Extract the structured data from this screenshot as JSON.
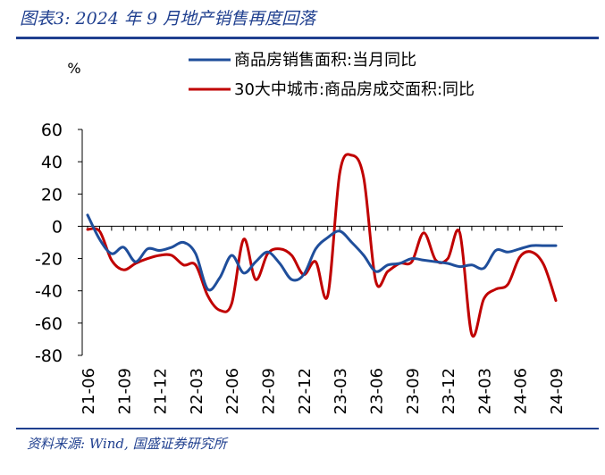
{
  "header": {
    "title": "图表3:  2024 年 9 月地产销售再度回落"
  },
  "footer": {
    "source": "资料来源:  Wind,  国盛证券研究所"
  },
  "colors": {
    "brand": "#1f3f8f",
    "series_blue": "#1f4e9b",
    "series_red": "#c00000"
  },
  "chart_data": {
    "type": "line",
    "title": "",
    "ylabel": "%",
    "xlabel": "",
    "ylim": [
      -80,
      60
    ],
    "yticks": [
      "60",
      "40",
      "20",
      "0",
      "-20",
      "-40",
      "-60",
      "-80"
    ],
    "ytick_values": [
      60,
      40,
      20,
      0,
      -20,
      -40,
      -60,
      -80
    ],
    "xtick_labels": [
      "21-06",
      "21-09",
      "21-12",
      "22-03",
      "22-06",
      "22-09",
      "22-12",
      "23-03",
      "23-06",
      "23-09",
      "23-12",
      "24-03",
      "24-06",
      "24-09"
    ],
    "x_months": [
      "21-06",
      "21-07",
      "21-08",
      "21-09",
      "21-10",
      "21-11",
      "21-12",
      "22-01",
      "22-02",
      "22-03",
      "22-04",
      "22-05",
      "22-06",
      "22-07",
      "22-08",
      "22-09",
      "22-10",
      "22-11",
      "22-12",
      "23-01",
      "23-02",
      "23-03",
      "23-04",
      "23-05",
      "23-06",
      "23-07",
      "23-08",
      "23-09",
      "23-10",
      "23-11",
      "23-12",
      "24-01",
      "24-02",
      "24-03",
      "24-04",
      "24-05",
      "24-06",
      "24-07",
      "24-08",
      "24-09"
    ],
    "legend_position": "top",
    "series": [
      {
        "name": "商品房销售面积:当月同比",
        "color": "#1f4e9b",
        "values": [
          7,
          -8,
          -17,
          -13,
          -22,
          -14,
          -15,
          -13,
          -10,
          -17,
          -39,
          -32,
          -18,
          -29,
          -22,
          -16,
          -23,
          -33,
          -30,
          -14,
          -7,
          -3,
          -10,
          -18,
          -28,
          -24,
          -23,
          -20,
          -21,
          -22,
          -23,
          -25,
          -24,
          -26,
          -15,
          -16,
          -14,
          -12,
          -12,
          -12
        ]
      },
      {
        "name": "30大中城市:商品房成交面积:同比",
        "color": "#c00000",
        "values": [
          -2,
          -3,
          -21,
          -27,
          -23,
          -20,
          -18,
          -18,
          -24,
          -24,
          -43,
          -52,
          -48,
          -8,
          -33,
          -17,
          -14,
          -18,
          -30,
          -22,
          -43,
          33,
          44,
          30,
          -34,
          -28,
          -23,
          -22,
          -4,
          -21,
          -20,
          -4,
          -67,
          -45,
          -39,
          -36,
          -19,
          -16,
          -24,
          -46
        ]
      }
    ]
  }
}
